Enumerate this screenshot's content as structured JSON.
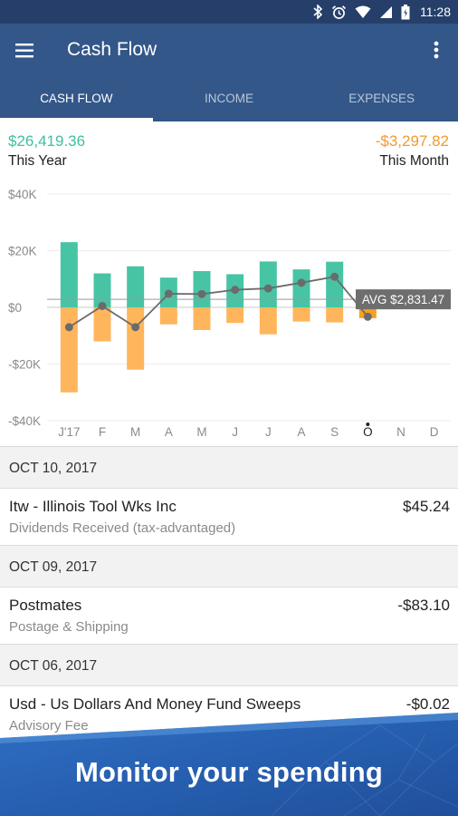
{
  "status_bar": {
    "time": "11:28",
    "icons": [
      "bluetooth-icon",
      "alarm-icon",
      "wifi-icon",
      "signal-icon",
      "battery-icon"
    ]
  },
  "app_bar": {
    "title": "Cash Flow",
    "menu_icon": "hamburger-menu-icon",
    "more_icon": "more-vertical-icon"
  },
  "tabs": [
    {
      "label": "CASH FLOW",
      "active": true
    },
    {
      "label": "INCOME",
      "active": false
    },
    {
      "label": "EXPENSES",
      "active": false
    }
  ],
  "summary": {
    "year_value": "$26,419.36",
    "year_label": "This Year",
    "month_value": "-$3,297.82",
    "month_label": "This Month"
  },
  "colors": {
    "income": "#47c4a4",
    "expense": "#ffb55c",
    "current_expense": "#f7a021",
    "primary": "#335789",
    "status": "#263f6a",
    "line": "#6b6b6b",
    "avg_badge": "#6e6e6e"
  },
  "chart_data": {
    "type": "bar",
    "categories": [
      "J'17",
      "F",
      "M",
      "A",
      "M",
      "J",
      "J",
      "A",
      "S",
      "O",
      "N",
      "D"
    ],
    "current_index": 9,
    "series": [
      {
        "values": [
          23000,
          12000,
          14500,
          10500,
          12800,
          11700,
          16200,
          13400,
          16100,
          0,
          null,
          null
        ]
      },
      {
        "values": [
          -30000,
          -12000,
          -22000,
          -6000,
          -8000,
          -5500,
          -9500,
          -5000,
          -5300,
          -3800,
          null,
          null
        ]
      },
      {
        "values": [
          -7000,
          500,
          -7000,
          4800,
          4700,
          6200,
          6700,
          8700,
          10800,
          -3300,
          null,
          null
        ]
      }
    ],
    "ylim": [
      -40000,
      40000
    ],
    "yticks": [
      40000,
      20000,
      0,
      -20000,
      -40000
    ],
    "ytick_labels": [
      "$40K",
      "$20K",
      "$0",
      "-$20K",
      "-$40K"
    ],
    "average": {
      "label": "AVG $2,831.47",
      "value": 2831.47
    }
  },
  "transactions": [
    {
      "date": "OCT 10, 2017",
      "name": "Itw - Illinois Tool Wks Inc",
      "category": "Dividends Received (tax-advantaged)",
      "amount": "$45.24"
    },
    {
      "date": "OCT 09, 2017",
      "name": "Postmates",
      "category": "Postage & Shipping",
      "amount": "-$83.10"
    },
    {
      "date": "OCT 06, 2017",
      "name": "Usd - Us Dollars And Money Fund Sweeps",
      "category": "Advisory Fee",
      "amount": "-$0.02"
    }
  ],
  "banner": {
    "text": "Monitor your spending"
  }
}
